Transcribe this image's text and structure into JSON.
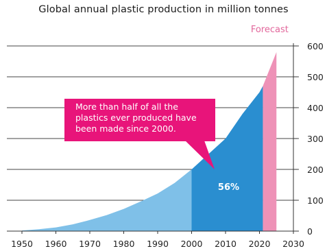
{
  "chart_data": {
    "type": "area",
    "title": "Global annual plastic production in million tonnes",
    "xlabel": "",
    "ylabel": "",
    "xlim": [
      1950,
      2030
    ],
    "ylim": [
      0,
      600
    ],
    "x_ticks": [
      1950,
      1960,
      1970,
      1980,
      1990,
      2000,
      2010,
      2020,
      2030
    ],
    "y_ticks": [
      0,
      100,
      200,
      300,
      400,
      500,
      600
    ],
    "grid": "horizontal",
    "x": [
      1950,
      1955,
      1960,
      1965,
      1970,
      1975,
      1980,
      1985,
      1990,
      1995,
      2000,
      2005,
      2010,
      2015,
      2020,
      2021,
      2025
    ],
    "values": [
      2,
      6,
      12,
      22,
      36,
      52,
      72,
      96,
      122,
      156,
      200,
      250,
      300,
      380,
      450,
      470,
      580
    ],
    "segments": [
      {
        "from": 1950,
        "to": 2000,
        "color": "#7fc0e8"
      },
      {
        "from": 2000,
        "to": 2021,
        "color": "#2a8ed0"
      },
      {
        "from": 2021,
        "to": 2025,
        "color": "#ee92b7"
      }
    ],
    "forecast_label": "Forecast",
    "share_label": "56%",
    "annotation": "More than half of all the plastics ever produced have been made since 2000.",
    "annotation_color": "#e8147a"
  }
}
